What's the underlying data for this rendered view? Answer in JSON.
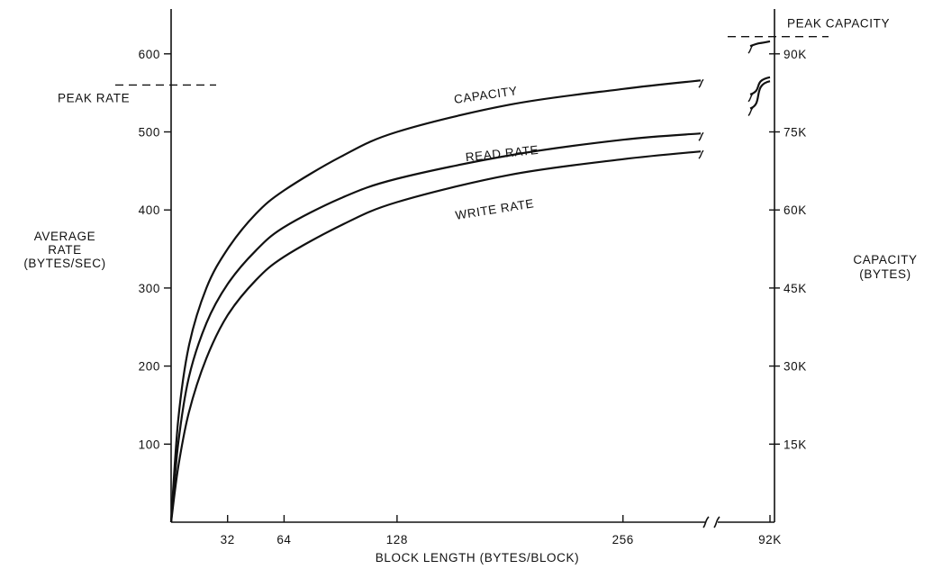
{
  "chart_data": {
    "type": "line",
    "title": "",
    "xlabel": "BLOCK LENGTH (BYTES/BLOCK)",
    "ylabel_left": [
      "AVERAGE",
      "RATE",
      "(BYTES/SEC)"
    ],
    "ylabel_right": [
      "CAPACITY",
      "(BYTES)"
    ],
    "x_ticks": [
      "32",
      "64",
      "128",
      "256",
      "92K"
    ],
    "x_tick_values": [
      32,
      64,
      128,
      256,
      350
    ],
    "x_break_before": 350,
    "xlim": [
      0,
      350
    ],
    "y_left_ticks": [
      "100",
      "200",
      "300",
      "400",
      "500",
      "600"
    ],
    "y_left_tick_values": [
      100,
      200,
      300,
      400,
      500,
      600
    ],
    "ylim_left": [
      0,
      600
    ],
    "y_right_ticks": [
      "15K",
      "30K",
      "45K",
      "60K",
      "75K",
      "90K"
    ],
    "y_right_tick_values": [
      100,
      200,
      300,
      400,
      500,
      600
    ],
    "peak_rate": {
      "label": "PEAK RATE",
      "value": 560
    },
    "peak_capacity": {
      "label": "PEAK CAPACITY",
      "value": 622
    },
    "series": [
      {
        "name": "CAPACITY",
        "x": [
          0,
          4,
          10,
          20,
          32,
          48,
          64,
          96,
          128,
          192,
          256,
          300
        ],
        "y": [
          0,
          130,
          225,
          300,
          350,
          395,
          425,
          468,
          500,
          535,
          555,
          566
        ],
        "tail_x": [
          330,
          350
        ],
        "tail_y": [
          610,
          616
        ]
      },
      {
        "name": "READ RATE",
        "x": [
          0,
          4,
          10,
          20,
          32,
          48,
          64,
          96,
          128,
          192,
          256,
          300
        ],
        "y": [
          0,
          100,
          185,
          255,
          305,
          348,
          378,
          415,
          440,
          470,
          490,
          498
        ],
        "tail_x": [
          330,
          350
        ],
        "tail_y": [
          548,
          570
        ]
      },
      {
        "name": "WRITE RATE",
        "x": [
          0,
          4,
          10,
          20,
          32,
          48,
          64,
          96,
          128,
          192,
          256,
          300
        ],
        "y": [
          0,
          70,
          140,
          210,
          265,
          310,
          340,
          380,
          410,
          445,
          465,
          475
        ],
        "tail_x": [
          330,
          350
        ],
        "tail_y": [
          530,
          565
        ]
      }
    ]
  }
}
